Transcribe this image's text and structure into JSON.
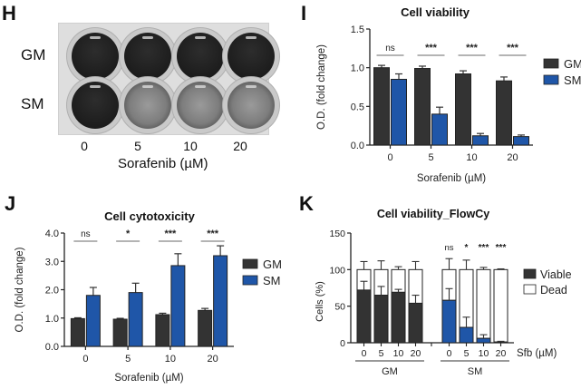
{
  "panels": {
    "H": {
      "letter": "H",
      "row_labels": [
        "GM",
        "SM"
      ],
      "dose_labels": [
        "0",
        "5",
        "10",
        "20"
      ],
      "xlabel": "Sorafenib (µM)",
      "wells": {
        "GM": [
          "dark",
          "dark",
          "dark",
          "dark"
        ],
        "SM": [
          "dark",
          "light",
          "light",
          "light"
        ]
      }
    },
    "I": {
      "letter": "I"
    },
    "J": {
      "letter": "J"
    },
    "K": {
      "letter": "K"
    }
  },
  "colors": {
    "GM": "#333333",
    "SM": "#1f56a8",
    "Dead": "#ffffff",
    "axis": "#222222",
    "sigline": "#888888"
  },
  "chart_data": [
    {
      "id": "I",
      "type": "bar",
      "title": "Cell viability",
      "xlabel": "Sorafenib (µM)",
      "ylabel": "O.D. (fold change)",
      "categories": [
        "0",
        "5",
        "10",
        "20"
      ],
      "ylim": [
        0,
        1.5
      ],
      "yticks": [
        0.0,
        0.5,
        1.0,
        1.5
      ],
      "ytick_labels": [
        "0.0",
        "0.5",
        "1.0",
        "1.5"
      ],
      "series": [
        {
          "name": "GM",
          "values": [
            1.0,
            0.99,
            0.92,
            0.83
          ],
          "errors": [
            0.03,
            0.03,
            0.04,
            0.05
          ]
        },
        {
          "name": "SM",
          "values": [
            0.85,
            0.4,
            0.12,
            0.11
          ],
          "errors": [
            0.07,
            0.09,
            0.03,
            0.02
          ]
        }
      ],
      "significance": [
        "ns",
        "***",
        "***",
        "***"
      ],
      "legend": "right"
    },
    {
      "id": "J",
      "type": "bar",
      "title": "Cell cytotoxicity",
      "xlabel": "Sorafenib (µM)",
      "ylabel": "O.D. (fold change)",
      "categories": [
        "0",
        "5",
        "10",
        "20"
      ],
      "ylim": [
        0,
        4.0
      ],
      "yticks": [
        0.0,
        1.0,
        2.0,
        3.0,
        4.0
      ],
      "ytick_labels": [
        "0.0",
        "1.0",
        "2.0",
        "3.0",
        "4.0"
      ],
      "series": [
        {
          "name": "GM",
          "values": [
            0.98,
            0.96,
            1.12,
            1.27
          ],
          "errors": [
            0.03,
            0.03,
            0.05,
            0.07
          ]
        },
        {
          "name": "SM",
          "values": [
            1.8,
            1.9,
            2.85,
            3.2
          ],
          "errors": [
            0.28,
            0.33,
            0.42,
            0.35
          ]
        }
      ],
      "significance": [
        "ns",
        "*",
        "***",
        "***"
      ],
      "legend": "right"
    },
    {
      "id": "K",
      "type": "bar",
      "stacked": true,
      "title": "Cell viability_FlowCy",
      "xlabel": "Sfb (µM)",
      "ylabel": "Cells (%)",
      "groups": [
        "GM",
        "SM"
      ],
      "categories": [
        "0",
        "5",
        "10",
        "20"
      ],
      "ylim": [
        0,
        150
      ],
      "yticks": [
        0,
        50,
        100,
        150
      ],
      "ytick_labels": [
        "0",
        "50",
        "100",
        "150"
      ],
      "series": [
        {
          "name": "Viable",
          "GM": [
            72,
            65,
            69,
            54
          ],
          "SM": [
            58,
            21,
            6,
            1
          ],
          "GM_errors": [
            12,
            12,
            4,
            11
          ],
          "SM_errors": [
            16,
            14,
            5,
            1
          ]
        },
        {
          "name": "Dead",
          "GM": [
            28,
            35,
            31,
            46
          ],
          "SM": [
            42,
            79,
            94,
            99
          ],
          "GM_errors": [
            11,
            12,
            4,
            11
          ],
          "SM_errors": [
            15,
            13,
            3,
            1
          ]
        }
      ],
      "significance_SM": [
        "ns",
        "*",
        "***",
        "***"
      ],
      "legend": "right"
    }
  ]
}
